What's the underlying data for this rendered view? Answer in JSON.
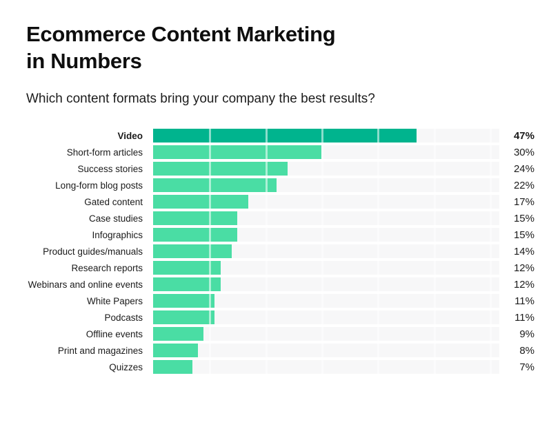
{
  "header": {
    "title_line1": "Ecommerce Content Marketing",
    "title_line2": "in Numbers",
    "subtitle": "Which content formats bring your company the best results?"
  },
  "chart_data": {
    "type": "bar",
    "orientation": "horizontal",
    "title": "Ecommerce Content Marketing in Numbers",
    "question": "Which content formats bring your company the best results?",
    "unit": "percent",
    "categories": [
      "Video",
      "Short-form articles",
      "Success stories",
      "Long-form blog posts",
      "Gated content",
      "Case studies",
      "Infographics",
      "Product guides/manuals",
      "Research reports",
      "Webinars and online events",
      "White Papers",
      "Podcasts",
      "Offline events",
      "Print and magazines",
      "Quizzes"
    ],
    "values": [
      47,
      30,
      24,
      22,
      17,
      15,
      15,
      14,
      12,
      12,
      11,
      11,
      9,
      8,
      7
    ],
    "value_labels": [
      "47%",
      "30%",
      "24%",
      "22%",
      "17%",
      "15%",
      "15%",
      "14%",
      "12%",
      "12%",
      "11%",
      "11%",
      "9%",
      "8%",
      "7%"
    ],
    "highlighted_category": "Video",
    "xlim": [
      0,
      61.7
    ],
    "gridline_interval": 10,
    "grid": "vertical white dividers every 10%",
    "legend": "none",
    "colors": {
      "bar_highlight": "#00B48E",
      "bar_default": "#4ADDA4",
      "track": "#F7F7F8",
      "gridline": "#FFFFFF",
      "title_text": "#0E0E0E",
      "label_text": "#1A1A1A"
    }
  }
}
